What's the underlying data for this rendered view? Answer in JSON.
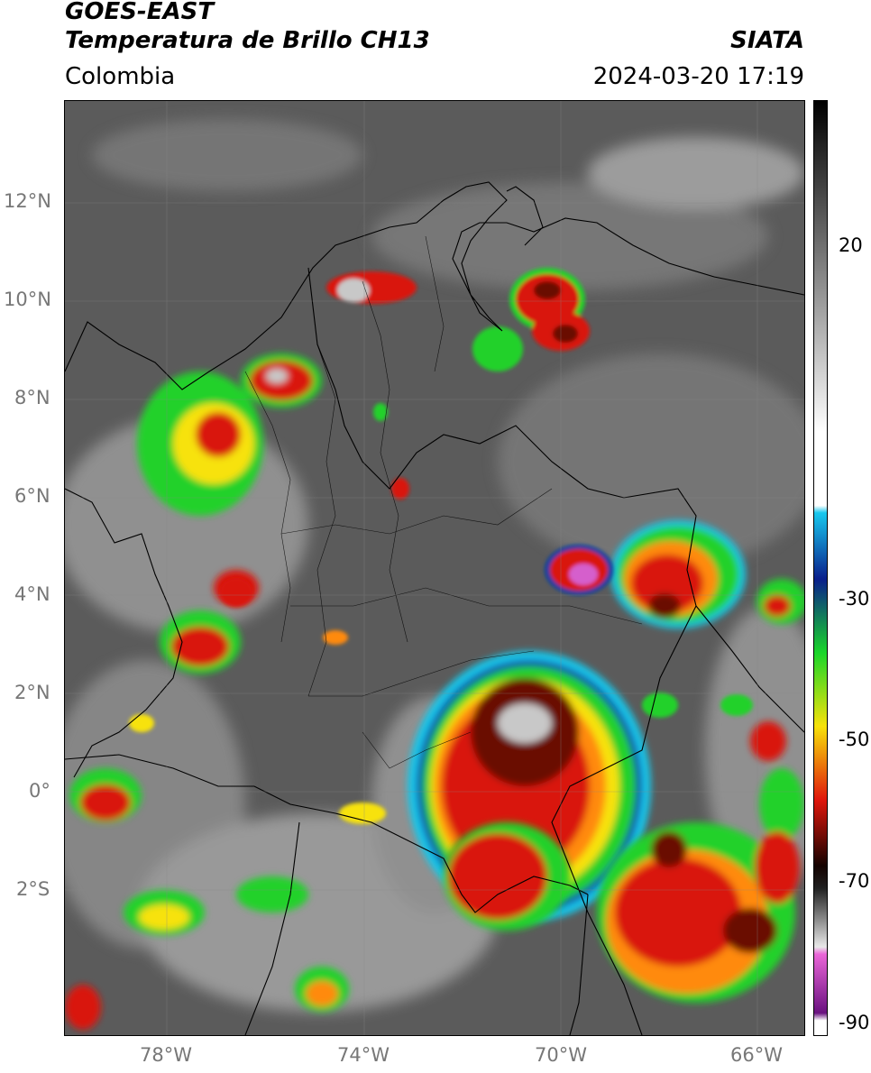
{
  "header": {
    "satellite": "GOES-EAST",
    "product": "Temperatura de Brillo CH13",
    "region": "Colombia",
    "source": "SIATA",
    "datetime": "2024-03-20 17:19"
  },
  "map": {
    "lat_labels": [
      "12°N",
      "10°N",
      "8°N",
      "6°N",
      "4°N",
      "2°N",
      "0°",
      "2°S"
    ],
    "lon_labels": [
      "78°W",
      "74°W",
      "70°W",
      "66°W"
    ],
    "colors": {
      "background_gray": "#5a5a5a",
      "cold_white": "#e6e6e6",
      "green": "#22d12a",
      "yellow": "#f7e20a",
      "orange": "#ff8a0a",
      "red": "#d9150c",
      "dark_red": "#6b0b06",
      "magenta": "#d55fcc",
      "cyan": "#19c7ea",
      "blue": "#0a3ea6"
    }
  },
  "colorbar": {
    "labels": [
      "20",
      "-30",
      "-50",
      "-70",
      "-90"
    ],
    "stops": [
      {
        "value": 35,
        "color": "#000000"
      },
      {
        "value": 20,
        "color": "#555555"
      },
      {
        "value": -10,
        "color": "#ffffff"
      },
      {
        "value": -20,
        "color": "#ffffff"
      },
      {
        "value": -21,
        "color": "#18c8ee"
      },
      {
        "value": -30,
        "color": "#0a1f8c"
      },
      {
        "value": -40,
        "color": "#1ad62a"
      },
      {
        "value": -50,
        "color": "#f7e20a"
      },
      {
        "value": -60,
        "color": "#e0170c"
      },
      {
        "value": -69,
        "color": "#140200"
      },
      {
        "value": -72,
        "color": "#202020"
      },
      {
        "value": -80,
        "color": "#e8e8e8"
      },
      {
        "value": -81,
        "color": "#ea66d8"
      },
      {
        "value": -89,
        "color": "#6a1280"
      },
      {
        "value": -90,
        "color": "#ffffff"
      }
    ]
  }
}
